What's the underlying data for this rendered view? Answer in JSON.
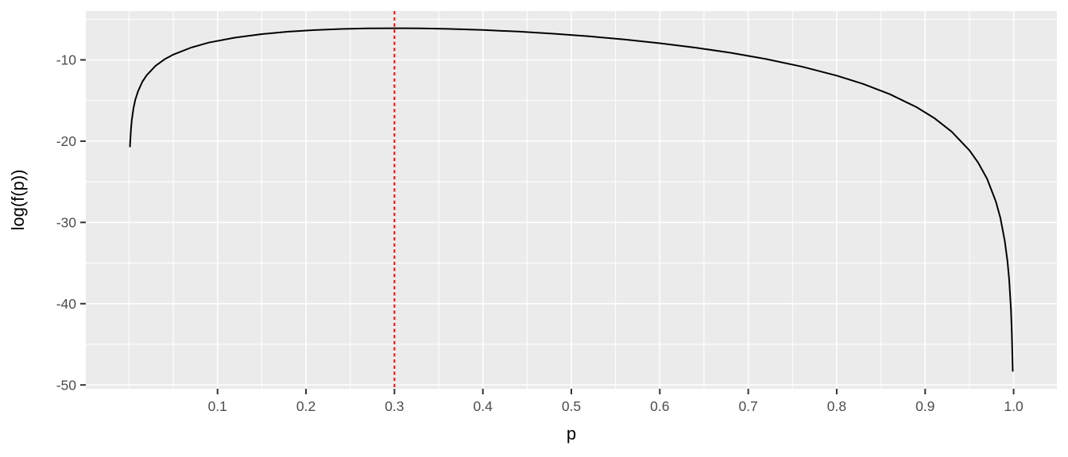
{
  "chart_data": {
    "type": "line",
    "title": "",
    "xlabel": "p",
    "ylabel": "log(f(p))",
    "x_ticks": [
      0.1,
      0.2,
      0.3,
      0.4,
      0.5,
      0.6,
      0.7,
      0.8,
      0.9,
      1.0
    ],
    "x_tick_labels": [
      "0.1",
      "0.2",
      "0.3",
      "0.4",
      "0.5",
      "0.6",
      "0.7",
      "0.8",
      "0.9",
      "1.0"
    ],
    "y_ticks": [
      -10,
      -20,
      -30,
      -40,
      -50
    ],
    "y_tick_labels": [
      "-10",
      "-20",
      "-30",
      "-40",
      "-50"
    ],
    "xlim": [
      -0.0489,
      1.0489
    ],
    "ylim": [
      -50.47,
      -4.0
    ],
    "grid": "on",
    "legend": "none",
    "panel_bg": "#EBEBEB",
    "grid_color": "#FFFFFF",
    "tick_color": "#333333",
    "tick_label_color": "#4D4D4D",
    "vline": {
      "x": 0.3,
      "color": "#FF0000",
      "linetype": "dashed"
    },
    "series": [
      {
        "name": "log-likelihood curve",
        "color": "#000000",
        "points": [
          [
            0.001,
            -20.73
          ],
          [
            0.002,
            -18.66
          ],
          [
            0.003,
            -17.45
          ],
          [
            0.005,
            -15.93
          ],
          [
            0.007,
            -14.93
          ],
          [
            0.01,
            -13.89
          ],
          [
            0.015,
            -12.7
          ],
          [
            0.02,
            -11.88
          ],
          [
            0.03,
            -10.73
          ],
          [
            0.04,
            -9.94
          ],
          [
            0.05,
            -9.35
          ],
          [
            0.07,
            -8.49
          ],
          [
            0.09,
            -7.88
          ],
          [
            0.12,
            -7.26
          ],
          [
            0.15,
            -6.83
          ],
          [
            0.18,
            -6.53
          ],
          [
            0.21,
            -6.33
          ],
          [
            0.24,
            -6.2
          ],
          [
            0.27,
            -6.13
          ],
          [
            0.3,
            -6.11
          ],
          [
            0.33,
            -6.13
          ],
          [
            0.36,
            -6.19
          ],
          [
            0.4,
            -6.32
          ],
          [
            0.44,
            -6.52
          ],
          [
            0.48,
            -6.78
          ],
          [
            0.52,
            -7.1
          ],
          [
            0.56,
            -7.49
          ],
          [
            0.6,
            -7.95
          ],
          [
            0.64,
            -8.49
          ],
          [
            0.68,
            -9.13
          ],
          [
            0.72,
            -9.9
          ],
          [
            0.76,
            -10.81
          ],
          [
            0.8,
            -11.94
          ],
          [
            0.83,
            -12.96
          ],
          [
            0.86,
            -14.22
          ],
          [
            0.89,
            -15.8
          ],
          [
            0.91,
            -17.14
          ],
          [
            0.93,
            -18.83
          ],
          [
            0.95,
            -21.12
          ],
          [
            0.96,
            -22.66
          ],
          [
            0.97,
            -24.64
          ],
          [
            0.98,
            -27.45
          ],
          [
            0.985,
            -29.44
          ],
          [
            0.99,
            -32.27
          ],
          [
            0.993,
            -34.75
          ],
          [
            0.995,
            -37.1
          ],
          [
            0.997,
            -40.67
          ],
          [
            0.998,
            -43.51
          ],
          [
            0.999,
            -48.36
          ]
        ]
      }
    ]
  }
}
